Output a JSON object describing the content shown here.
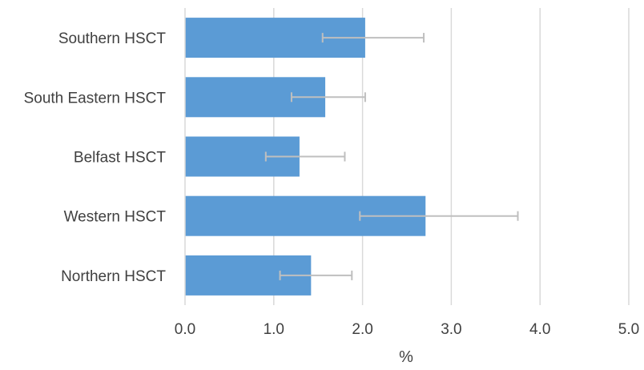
{
  "chart_data": {
    "type": "bar",
    "orientation": "horizontal",
    "categories": [
      "Southern HSCT",
      "South Eastern HSCT",
      "Belfast HSCT",
      "Western HSCT",
      "Northern HSCT"
    ],
    "values": [
      2.03,
      1.58,
      1.29,
      2.71,
      1.42
    ],
    "error_low": [
      1.55,
      1.2,
      0.91,
      1.97,
      1.07
    ],
    "error_high": [
      2.69,
      2.03,
      1.8,
      3.75,
      1.88
    ],
    "xlabel": "%",
    "ylabel": "",
    "xlim": [
      0,
      5
    ],
    "x_ticks": [
      "0.0",
      "1.0",
      "2.0",
      "3.0",
      "4.0",
      "5.0"
    ],
    "grid": "vertical",
    "legend": "none",
    "colors": {
      "bar": "#5b9bd5",
      "error_bar": "#bfbfbf",
      "grid": "#d9d9d9",
      "text": "#404040"
    }
  }
}
